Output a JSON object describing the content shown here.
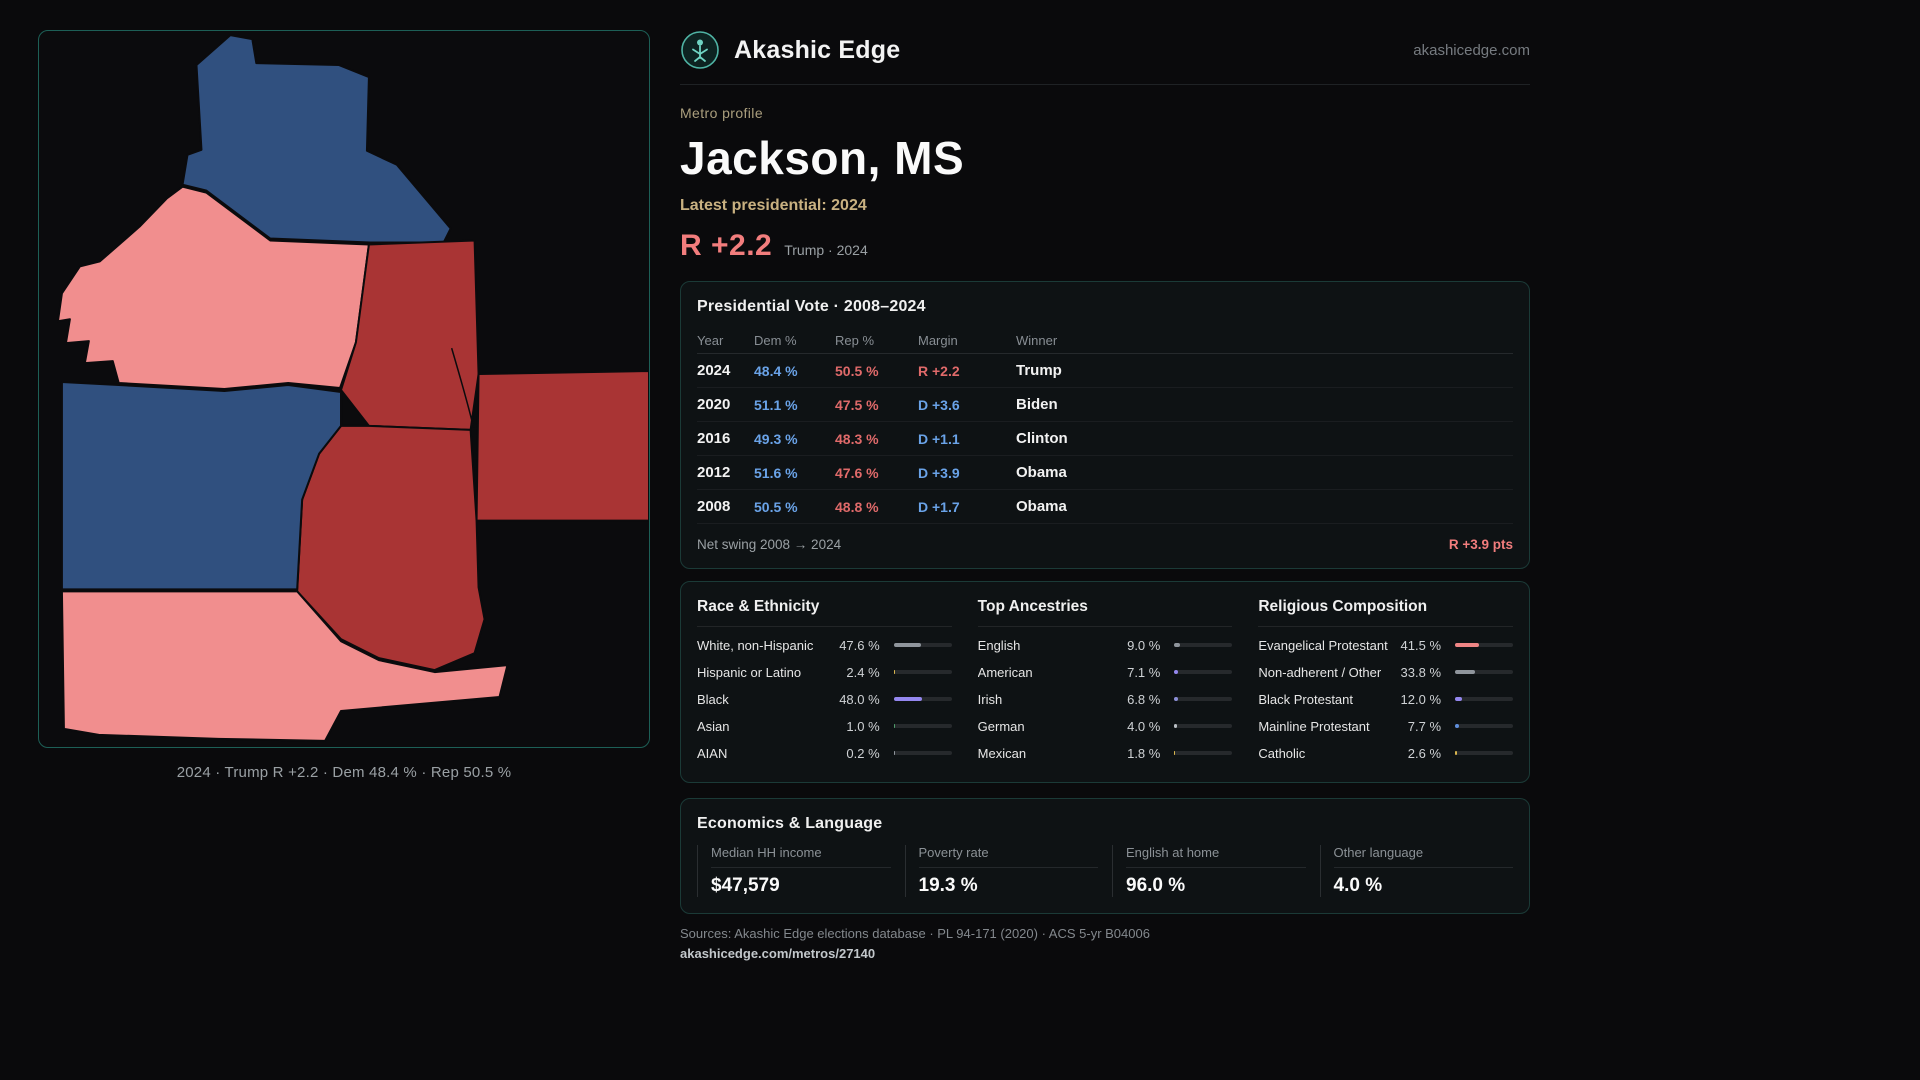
{
  "header": {
    "brand": "Akashic Edge",
    "site_link": "akashicedge.com"
  },
  "map": {
    "caption": "2024 · Trump R +2.2 · Dem 48.4 % · Rep 50.5 %",
    "colors": {
      "dem_county": "#30507f",
      "rep_strong_county": "#a93434",
      "rep_light_county": "#f18e8e"
    }
  },
  "profile": {
    "kicker": "Metro profile",
    "title": "Jackson, MS",
    "latest_label": "Latest presidential: 2024",
    "margin": "R +2.2",
    "margin_note": "Trump · 2024"
  },
  "vote_card": {
    "title": "Presidential Vote · 2008–2024",
    "columns": [
      "Year",
      "Dem %",
      "Rep %",
      "Margin",
      "Winner"
    ],
    "rows": [
      {
        "year": "2024",
        "dem": "48.4 %",
        "rep": "50.5 %",
        "margin": "R +2.2",
        "party": "R",
        "winner": "Trump"
      },
      {
        "year": "2020",
        "dem": "51.1 %",
        "rep": "47.5 %",
        "margin": "D +3.6",
        "party": "D",
        "winner": "Biden"
      },
      {
        "year": "2016",
        "dem": "49.3 %",
        "rep": "48.3 %",
        "margin": "D +1.1",
        "party": "D",
        "winner": "Clinton"
      },
      {
        "year": "2012",
        "dem": "51.6 %",
        "rep": "47.6 %",
        "margin": "D +3.9",
        "party": "D",
        "winner": "Obama"
      },
      {
        "year": "2008",
        "dem": "50.5 %",
        "rep": "48.8 %",
        "margin": "D +1.7",
        "party": "D",
        "winner": "Obama"
      }
    ],
    "net_swing_label": "Net swing 2008 → 2024",
    "net_swing_value": "R +3.9 pts"
  },
  "demographics": {
    "race": {
      "title": "Race & Ethnicity",
      "rows": [
        {
          "label": "White, non-Hispanic",
          "value": "47.6 %",
          "pct": 47.6,
          "color": "#8f959c"
        },
        {
          "label": "Hispanic or Latino",
          "value": "2.4 %",
          "pct": 2.4,
          "color": "#d8b54e"
        },
        {
          "label": "Black",
          "value": "48.0 %",
          "pct": 48.0,
          "color": "#9487ef"
        },
        {
          "label": "Asian",
          "value": "1.0 %",
          "pct": 1.0,
          "color": "#4f9d6b"
        },
        {
          "label": "AIAN",
          "value": "0.2 %",
          "pct": 0.2,
          "color": "#8f959c"
        }
      ]
    },
    "ancestries": {
      "title": "Top Ancestries",
      "rows": [
        {
          "label": "English",
          "value": "9.0 %",
          "pct": 9.0,
          "color": "#8f959c"
        },
        {
          "label": "American",
          "value": "7.1 %",
          "pct": 7.1,
          "color": "#9487ef"
        },
        {
          "label": "Irish",
          "value": "6.8 %",
          "pct": 6.8,
          "color": "#8c8fd8"
        },
        {
          "label": "German",
          "value": "4.0 %",
          "pct": 4.0,
          "color": "#b9bec4"
        },
        {
          "label": "Mexican",
          "value": "1.8 %",
          "pct": 1.8,
          "color": "#d8b54e"
        }
      ]
    },
    "religion": {
      "title": "Religious Composition",
      "rows": [
        {
          "label": "Evangelical Protestant",
          "value": "41.5 %",
          "pct": 41.5,
          "color": "#ef8585"
        },
        {
          "label": "Non-adherent / Other",
          "value": "33.8 %",
          "pct": 33.8,
          "color": "#8f959c"
        },
        {
          "label": "Black Protestant",
          "value": "12.0 %",
          "pct": 12.0,
          "color": "#9487ef"
        },
        {
          "label": "Mainline Protestant",
          "value": "7.7 %",
          "pct": 7.7,
          "color": "#5f8edb"
        },
        {
          "label": "Catholic",
          "value": "2.6 %",
          "pct": 2.6,
          "color": "#d8b54e"
        }
      ]
    }
  },
  "economics": {
    "title": "Economics & Language",
    "stats": [
      {
        "label": "Median HH income",
        "value": "$47,579"
      },
      {
        "label": "Poverty rate",
        "value": "19.3 %"
      },
      {
        "label": "English at home",
        "value": "96.0 %"
      },
      {
        "label": "Other language",
        "value": "4.0 %"
      }
    ]
  },
  "footer": {
    "sources": "Sources: Akashic Edge elections database · PL 94-171 (2020) · ACS 5-yr B04006",
    "permalink": "akashicedge.com/metros/27140"
  },
  "colors": {
    "accent_teal": "#1d5f56",
    "dem_text": "#6aa3e8",
    "rep_text": "#e06a6a",
    "margin_pink": "#f27d7d",
    "gold": "#c9b181"
  }
}
